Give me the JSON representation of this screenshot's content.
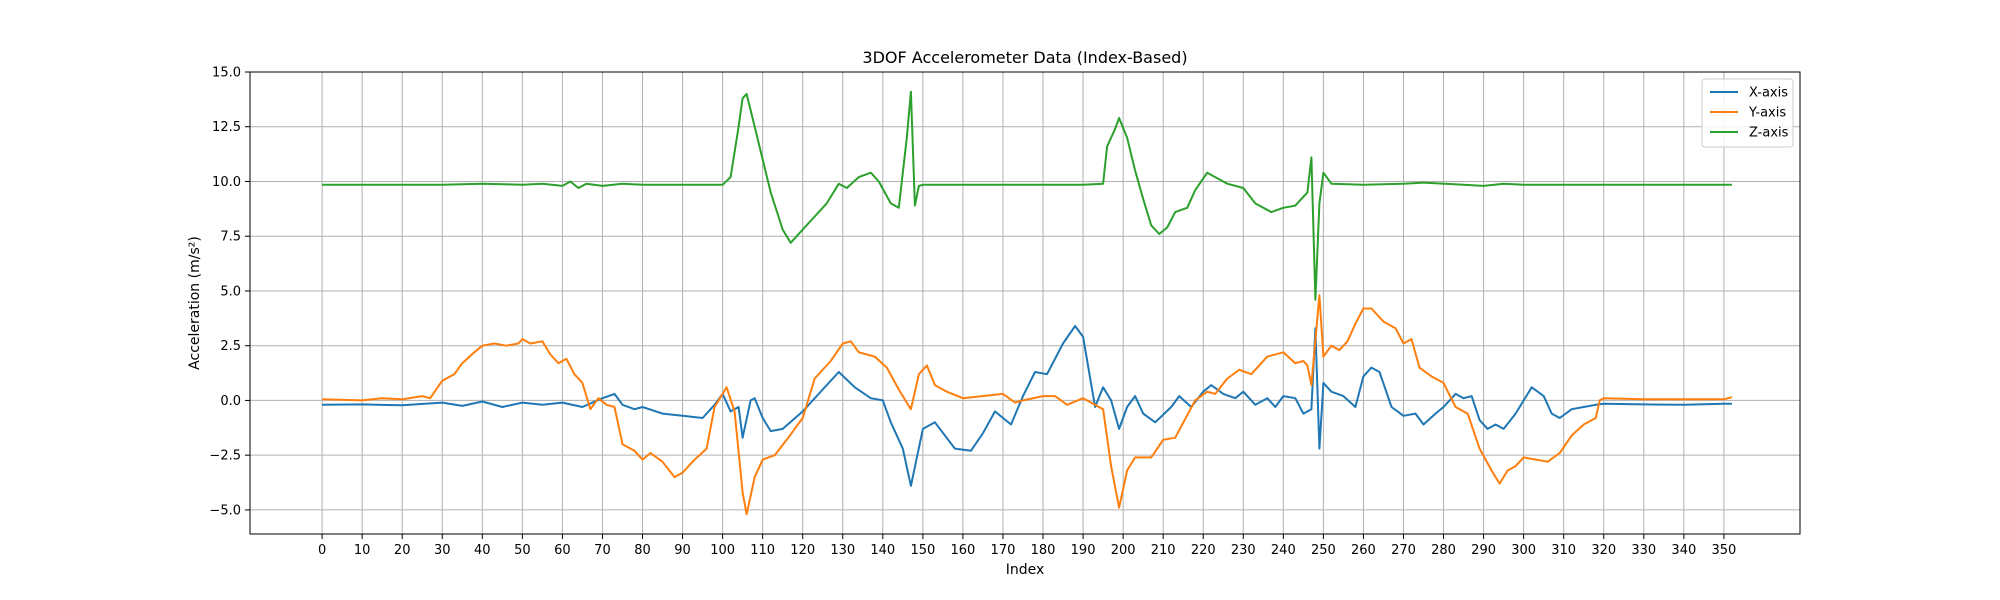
{
  "chart_data": {
    "type": "line",
    "title": "3DOF Accelerometer Data (Index-Based)",
    "xlabel": "Index",
    "ylabel": "Acceleration (m/s²)",
    "xlim": [
      -18,
      369
    ],
    "ylim": [
      -6.1,
      15.0
    ],
    "xticks": [
      0,
      10,
      20,
      30,
      40,
      50,
      60,
      70,
      80,
      90,
      100,
      110,
      120,
      130,
      140,
      150,
      160,
      170,
      180,
      190,
      200,
      210,
      220,
      230,
      240,
      250,
      260,
      270,
      280,
      290,
      300,
      310,
      320,
      330,
      340,
      350
    ],
    "yticks": [
      -5.0,
      -2.5,
      0.0,
      2.5,
      5.0,
      7.5,
      10.0,
      12.5,
      15.0
    ],
    "ytick_labels": [
      "−5.0",
      "−2.5",
      "0.0",
      "2.5",
      "5.0",
      "7.5",
      "10.0",
      "12.5",
      "15.0"
    ],
    "grid": true,
    "legend_position": "top-right",
    "series": [
      {
        "name": "X-axis",
        "color": "#1f77b4",
        "points": [
          [
            0,
            -0.2
          ],
          [
            10,
            -0.18
          ],
          [
            20,
            -0.22
          ],
          [
            30,
            -0.1
          ],
          [
            35,
            -0.25
          ],
          [
            40,
            -0.05
          ],
          [
            45,
            -0.3
          ],
          [
            50,
            -0.1
          ],
          [
            55,
            -0.2
          ],
          [
            60,
            -0.1
          ],
          [
            65,
            -0.3
          ],
          [
            70,
            0.1
          ],
          [
            73,
            0.3
          ],
          [
            75,
            -0.2
          ],
          [
            78,
            -0.4
          ],
          [
            80,
            -0.3
          ],
          [
            85,
            -0.6
          ],
          [
            90,
            -0.7
          ],
          [
            95,
            -0.8
          ],
          [
            98,
            -0.2
          ],
          [
            100,
            0.3
          ],
          [
            102,
            -0.5
          ],
          [
            104,
            -0.3
          ],
          [
            105,
            -1.7
          ],
          [
            107,
            0.0
          ],
          [
            108,
            0.1
          ],
          [
            110,
            -0.8
          ],
          [
            112,
            -1.4
          ],
          [
            115,
            -1.3
          ],
          [
            120,
            -0.5
          ],
          [
            125,
            0.5
          ],
          [
            129,
            1.3
          ],
          [
            133,
            0.6
          ],
          [
            137,
            0.1
          ],
          [
            140,
            0.0
          ],
          [
            142,
            -1.0
          ],
          [
            145,
            -2.2
          ],
          [
            147,
            -3.9
          ],
          [
            150,
            -1.3
          ],
          [
            153,
            -1.0
          ],
          [
            158,
            -2.2
          ],
          [
            162,
            -2.3
          ],
          [
            165,
            -1.5
          ],
          [
            168,
            -0.5
          ],
          [
            170,
            -0.8
          ],
          [
            172,
            -1.1
          ],
          [
            175,
            0.2
          ],
          [
            178,
            1.3
          ],
          [
            181,
            1.2
          ],
          [
            185,
            2.6
          ],
          [
            188,
            3.4
          ],
          [
            190,
            2.9
          ],
          [
            193,
            -0.3
          ],
          [
            195,
            0.6
          ],
          [
            197,
            0.0
          ],
          [
            199,
            -1.3
          ],
          [
            201,
            -0.3
          ],
          [
            203,
            0.2
          ],
          [
            205,
            -0.6
          ],
          [
            208,
            -1.0
          ],
          [
            212,
            -0.3
          ],
          [
            214,
            0.2
          ],
          [
            217,
            -0.3
          ],
          [
            220,
            0.4
          ],
          [
            222,
            0.7
          ],
          [
            225,
            0.3
          ],
          [
            228,
            0.1
          ],
          [
            230,
            0.4
          ],
          [
            233,
            -0.2
          ],
          [
            236,
            0.1
          ],
          [
            238,
            -0.3
          ],
          [
            240,
            0.2
          ],
          [
            243,
            0.1
          ],
          [
            245,
            -0.6
          ],
          [
            247,
            -0.4
          ],
          [
            248,
            3.3
          ],
          [
            249,
            -2.2
          ],
          [
            250,
            0.8
          ],
          [
            252,
            0.4
          ],
          [
            255,
            0.2
          ],
          [
            258,
            -0.3
          ],
          [
            260,
            1.1
          ],
          [
            262,
            1.5
          ],
          [
            264,
            1.3
          ],
          [
            267,
            -0.3
          ],
          [
            270,
            -0.7
          ],
          [
            273,
            -0.6
          ],
          [
            275,
            -1.1
          ],
          [
            278,
            -0.6
          ],
          [
            280,
            -0.3
          ],
          [
            283,
            0.3
          ],
          [
            285,
            0.1
          ],
          [
            287,
            0.2
          ],
          [
            289,
            -0.9
          ],
          [
            291,
            -1.3
          ],
          [
            293,
            -1.1
          ],
          [
            295,
            -1.3
          ],
          [
            298,
            -0.6
          ],
          [
            302,
            0.6
          ],
          [
            305,
            0.2
          ],
          [
            307,
            -0.6
          ],
          [
            309,
            -0.8
          ],
          [
            312,
            -0.4
          ],
          [
            315,
            -0.3
          ],
          [
            318,
            -0.2
          ],
          [
            320,
            -0.15
          ],
          [
            330,
            -0.18
          ],
          [
            340,
            -0.2
          ],
          [
            350,
            -0.15
          ],
          [
            352,
            -0.15
          ]
        ]
      },
      {
        "name": "Y-axis",
        "color": "#ff7f0e",
        "points": [
          [
            0,
            0.05
          ],
          [
            10,
            0.0
          ],
          [
            15,
            0.1
          ],
          [
            20,
            0.05
          ],
          [
            25,
            0.2
          ],
          [
            27,
            0.1
          ],
          [
            30,
            0.9
          ],
          [
            33,
            1.2
          ],
          [
            35,
            1.7
          ],
          [
            38,
            2.2
          ],
          [
            40,
            2.5
          ],
          [
            43,
            2.6
          ],
          [
            46,
            2.5
          ],
          [
            49,
            2.6
          ],
          [
            50,
            2.8
          ],
          [
            52,
            2.6
          ],
          [
            55,
            2.7
          ],
          [
            57,
            2.1
          ],
          [
            59,
            1.7
          ],
          [
            61,
            1.9
          ],
          [
            63,
            1.2
          ],
          [
            65,
            0.8
          ],
          [
            67,
            -0.4
          ],
          [
            69,
            0.1
          ],
          [
            71,
            -0.2
          ],
          [
            73,
            -0.3
          ],
          [
            75,
            -2.0
          ],
          [
            78,
            -2.3
          ],
          [
            80,
            -2.7
          ],
          [
            82,
            -2.4
          ],
          [
            85,
            -2.8
          ],
          [
            88,
            -3.5
          ],
          [
            90,
            -3.3
          ],
          [
            93,
            -2.7
          ],
          [
            96,
            -2.2
          ],
          [
            98,
            -0.3
          ],
          [
            101,
            0.6
          ],
          [
            103,
            -0.5
          ],
          [
            105,
            -4.2
          ],
          [
            106,
            -5.2
          ],
          [
            108,
            -3.5
          ],
          [
            110,
            -2.7
          ],
          [
            113,
            -2.5
          ],
          [
            116,
            -1.8
          ],
          [
            120,
            -0.8
          ],
          [
            123,
            1.0
          ],
          [
            127,
            1.8
          ],
          [
            130,
            2.6
          ],
          [
            132,
            2.7
          ],
          [
            134,
            2.2
          ],
          [
            138,
            2.0
          ],
          [
            141,
            1.5
          ],
          [
            144,
            0.5
          ],
          [
            146,
            -0.1
          ],
          [
            147,
            -0.4
          ],
          [
            149,
            1.2
          ],
          [
            151,
            1.6
          ],
          [
            153,
            0.7
          ],
          [
            156,
            0.4
          ],
          [
            160,
            0.1
          ],
          [
            170,
            0.3
          ],
          [
            173,
            -0.1
          ],
          [
            175,
            0.0
          ],
          [
            180,
            0.2
          ],
          [
            183,
            0.2
          ],
          [
            186,
            -0.2
          ],
          [
            190,
            0.1
          ],
          [
            195,
            -0.4
          ],
          [
            197,
            -3.0
          ],
          [
            199,
            -4.9
          ],
          [
            201,
            -3.2
          ],
          [
            203,
            -2.6
          ],
          [
            207,
            -2.6
          ],
          [
            210,
            -1.8
          ],
          [
            213,
            -1.7
          ],
          [
            218,
            0.0
          ],
          [
            221,
            0.4
          ],
          [
            223,
            0.3
          ],
          [
            226,
            1.0
          ],
          [
            229,
            1.4
          ],
          [
            232,
            1.2
          ],
          [
            236,
            2.0
          ],
          [
            240,
            2.2
          ],
          [
            243,
            1.7
          ],
          [
            245,
            1.8
          ],
          [
            246,
            1.6
          ],
          [
            247,
            0.7
          ],
          [
            249,
            4.8
          ],
          [
            250,
            2.0
          ],
          [
            252,
            2.5
          ],
          [
            254,
            2.3
          ],
          [
            256,
            2.7
          ],
          [
            258,
            3.5
          ],
          [
            260,
            4.2
          ],
          [
            262,
            4.2
          ],
          [
            265,
            3.6
          ],
          [
            268,
            3.3
          ],
          [
            270,
            2.6
          ],
          [
            272,
            2.8
          ],
          [
            274,
            1.5
          ],
          [
            277,
            1.1
          ],
          [
            280,
            0.8
          ],
          [
            283,
            -0.3
          ],
          [
            286,
            -0.6
          ],
          [
            289,
            -2.2
          ],
          [
            292,
            -3.2
          ],
          [
            294,
            -3.8
          ],
          [
            296,
            -3.2
          ],
          [
            298,
            -3.0
          ],
          [
            300,
            -2.6
          ],
          [
            303,
            -2.7
          ],
          [
            306,
            -2.8
          ],
          [
            309,
            -2.4
          ],
          [
            312,
            -1.6
          ],
          [
            315,
            -1.1
          ],
          [
            318,
            -0.8
          ],
          [
            319,
            0.0
          ],
          [
            320,
            0.1
          ],
          [
            330,
            0.05
          ],
          [
            340,
            0.05
          ],
          [
            350,
            0.05
          ],
          [
            352,
            0.15
          ]
        ]
      },
      {
        "name": "Z-axis",
        "color": "#2ca02c",
        "points": [
          [
            0,
            9.85
          ],
          [
            10,
            9.85
          ],
          [
            20,
            9.85
          ],
          [
            30,
            9.85
          ],
          [
            40,
            9.9
          ],
          [
            50,
            9.85
          ],
          [
            55,
            9.9
          ],
          [
            60,
            9.8
          ],
          [
            62,
            10.0
          ],
          [
            64,
            9.7
          ],
          [
            66,
            9.9
          ],
          [
            70,
            9.8
          ],
          [
            75,
            9.9
          ],
          [
            80,
            9.85
          ],
          [
            90,
            9.85
          ],
          [
            100,
            9.85
          ],
          [
            102,
            10.2
          ],
          [
            104,
            12.5
          ],
          [
            105,
            13.8
          ],
          [
            106,
            14.0
          ],
          [
            108,
            12.5
          ],
          [
            110,
            11.0
          ],
          [
            112,
            9.5
          ],
          [
            115,
            7.8
          ],
          [
            117,
            7.2
          ],
          [
            120,
            7.8
          ],
          [
            123,
            8.4
          ],
          [
            126,
            9.0
          ],
          [
            129,
            9.9
          ],
          [
            131,
            9.7
          ],
          [
            134,
            10.2
          ],
          [
            137,
            10.4
          ],
          [
            139,
            10.0
          ],
          [
            142,
            9.0
          ],
          [
            144,
            8.8
          ],
          [
            146,
            12.0
          ],
          [
            147,
            14.1
          ],
          [
            148,
            8.9
          ],
          [
            149,
            9.8
          ],
          [
            150,
            9.85
          ],
          [
            160,
            9.85
          ],
          [
            170,
            9.85
          ],
          [
            180,
            9.85
          ],
          [
            190,
            9.85
          ],
          [
            195,
            9.9
          ],
          [
            196,
            11.6
          ],
          [
            198,
            12.4
          ],
          [
            199,
            12.9
          ],
          [
            201,
            12.0
          ],
          [
            203,
            10.5
          ],
          [
            205,
            9.2
          ],
          [
            207,
            8.0
          ],
          [
            209,
            7.6
          ],
          [
            211,
            7.9
          ],
          [
            213,
            8.6
          ],
          [
            216,
            8.8
          ],
          [
            218,
            9.6
          ],
          [
            221,
            10.4
          ],
          [
            223,
            10.2
          ],
          [
            226,
            9.9
          ],
          [
            230,
            9.7
          ],
          [
            233,
            9.0
          ],
          [
            237,
            8.6
          ],
          [
            240,
            8.8
          ],
          [
            243,
            8.9
          ],
          [
            246,
            9.5
          ],
          [
            247,
            11.1
          ],
          [
            248,
            4.6
          ],
          [
            249,
            9.0
          ],
          [
            250,
            10.4
          ],
          [
            252,
            9.9
          ],
          [
            260,
            9.85
          ],
          [
            270,
            9.9
          ],
          [
            275,
            9.95
          ],
          [
            285,
            9.85
          ],
          [
            290,
            9.8
          ],
          [
            295,
            9.9
          ],
          [
            300,
            9.85
          ],
          [
            310,
            9.85
          ],
          [
            320,
            9.85
          ],
          [
            330,
            9.85
          ],
          [
            340,
            9.85
          ],
          [
            350,
            9.85
          ],
          [
            352,
            9.85
          ]
        ]
      }
    ]
  }
}
